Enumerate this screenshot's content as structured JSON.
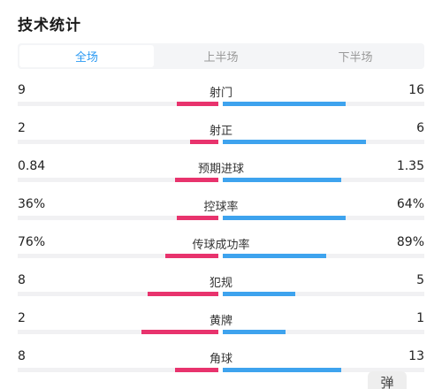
{
  "page": {
    "title": "技术统计"
  },
  "tabs": [
    {
      "label": "全场",
      "active": true
    },
    {
      "label": "上半场",
      "active": false
    },
    {
      "label": "下半场",
      "active": false
    }
  ],
  "colors": {
    "home": "#e8336d",
    "away": "#3ea3ee",
    "active_tab": "#2b9af3"
  },
  "stats": [
    {
      "name": "射门",
      "home": "9",
      "away": "16",
      "home_frac": 0.36,
      "away_frac": 0.64
    },
    {
      "name": "射正",
      "home": "2",
      "away": "6",
      "home_frac": 0.25,
      "away_frac": 0.75
    },
    {
      "name": "预期进球",
      "home": "0.84",
      "away": "1.35",
      "home_frac": 0.38,
      "away_frac": 0.62
    },
    {
      "name": "控球率",
      "home": "36%",
      "away": "64%",
      "home_frac": 0.36,
      "away_frac": 0.64
    },
    {
      "name": "传球成功率",
      "home": "76%",
      "away": "89%",
      "home_frac": 0.46,
      "away_frac": 0.54
    },
    {
      "name": "犯规",
      "home": "8",
      "away": "5",
      "home_frac": 0.62,
      "away_frac": 0.38
    },
    {
      "name": "黄牌",
      "home": "2",
      "away": "1",
      "home_frac": 0.67,
      "away_frac": 0.33
    },
    {
      "name": "角球",
      "home": "8",
      "away": "13",
      "home_frac": 0.38,
      "away_frac": 0.62
    }
  ],
  "float_button": {
    "label": "弹"
  }
}
